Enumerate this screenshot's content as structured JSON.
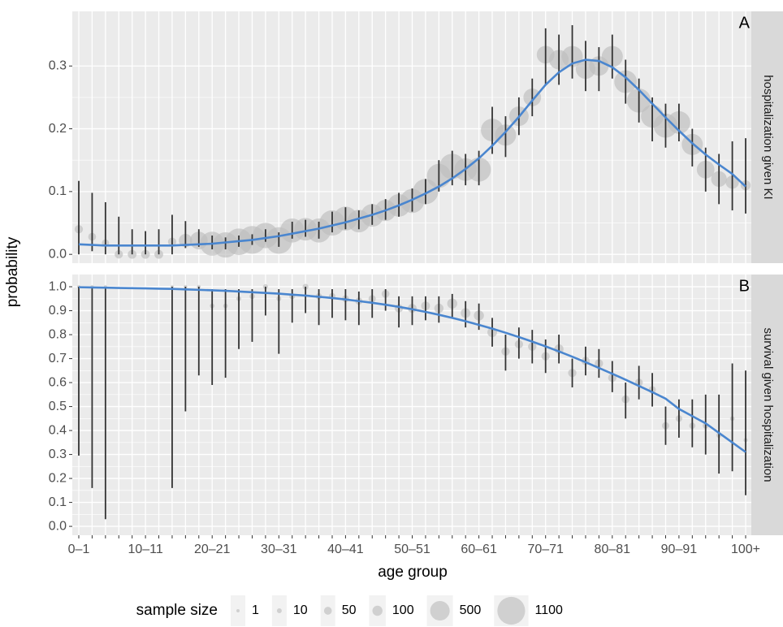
{
  "categories": [
    "0–1",
    null,
    null,
    null,
    null,
    "10–11",
    null,
    null,
    null,
    null,
    "20–21",
    null,
    null,
    null,
    null,
    "30–31",
    null,
    null,
    null,
    null,
    "40–41",
    null,
    null,
    null,
    null,
    "50–51",
    null,
    null,
    null,
    null,
    "60–61",
    null,
    null,
    null,
    null,
    "70–71",
    null,
    null,
    null,
    null,
    "80–81",
    null,
    null,
    null,
    null,
    "90–91",
    null,
    null,
    null,
    null,
    "100+"
  ],
  "x_label": "age group",
  "y_label": "probability",
  "legend": {
    "title": "sample size",
    "sizes": [
      1,
      10,
      50,
      100,
      500,
      1100
    ]
  },
  "chart_data": [
    {
      "type": "scatter",
      "label": "A",
      "strip": "hospitalization given KI",
      "point_color": "#bdbdbd",
      "bar_color": "#333333",
      "fit_color": "#4a86cf",
      "grid": true,
      "ylim": [
        -0.014,
        0.387
      ],
      "yticks": [
        {
          "value": 0,
          "label": "0.0"
        },
        {
          "value": 0.1,
          "label": "0.1"
        },
        {
          "value": 0.2,
          "label": "0.2"
        },
        {
          "value": 0.3,
          "label": "0.3"
        }
      ],
      "values": [
        0.04,
        0.028,
        0.018,
        0,
        0,
        0,
        0,
        0.02,
        0.022,
        0.022,
        0.017,
        0.015,
        0.02,
        0.023,
        0.03,
        0.022,
        0.038,
        0.04,
        0.038,
        0.05,
        0.057,
        0.053,
        0.062,
        0.07,
        0.078,
        0.085,
        0.1,
        0.125,
        0.14,
        0.135,
        0.135,
        0.198,
        0.19,
        0.22,
        0.25,
        0.318,
        0.31,
        0.315,
        0.295,
        0.3,
        0.315,
        0.275,
        0.245,
        0.22,
        0.205,
        0.21,
        0.175,
        0.135,
        0.12,
        0.115,
        0.11
      ],
      "lower": [
        0,
        0.005,
        0,
        0,
        0,
        0,
        0,
        0,
        0.01,
        0.012,
        0.008,
        0.008,
        0.012,
        0.015,
        0.02,
        0.012,
        0.025,
        0.028,
        0.025,
        0.035,
        0.04,
        0.04,
        0.047,
        0.055,
        0.06,
        0.068,
        0.08,
        0.1,
        0.11,
        0.11,
        0.11,
        0.16,
        0.155,
        0.19,
        0.22,
        0.27,
        0.27,
        0.28,
        0.26,
        0.26,
        0.28,
        0.24,
        0.21,
        0.18,
        0.17,
        0.18,
        0.14,
        0.1,
        0.08,
        0.07,
        0.065
      ],
      "upper": [
        0.117,
        0.098,
        0.083,
        0.06,
        0.04,
        0.037,
        0.04,
        0.063,
        0.053,
        0.04,
        0.03,
        0.027,
        0.03,
        0.032,
        0.04,
        0.035,
        0.052,
        0.055,
        0.052,
        0.068,
        0.075,
        0.07,
        0.08,
        0.088,
        0.098,
        0.105,
        0.12,
        0.15,
        0.165,
        0.16,
        0.165,
        0.235,
        0.22,
        0.25,
        0.28,
        0.36,
        0.35,
        0.365,
        0.34,
        0.33,
        0.35,
        0.31,
        0.28,
        0.25,
        0.24,
        0.24,
        0.2,
        0.17,
        0.16,
        0.18,
        0.185
      ],
      "sizes": [
        60,
        50,
        40,
        60,
        70,
        70,
        70,
        60,
        200,
        400,
        800,
        900,
        1000,
        1100,
        900,
        1000,
        800,
        700,
        800,
        900,
        800,
        700,
        700,
        600,
        700,
        800,
        900,
        800,
        900,
        700,
        800,
        700,
        600,
        500,
        400,
        400,
        500,
        600,
        500,
        500,
        600,
        700,
        800,
        700,
        800,
        700,
        600,
        400,
        300,
        200,
        100
      ],
      "fit": [
        0.016,
        0.015,
        0.014,
        0.014,
        0.014,
        0.014,
        0.014,
        0.014,
        0.015,
        0.016,
        0.017,
        0.019,
        0.021,
        0.023,
        0.026,
        0.029,
        0.033,
        0.037,
        0.041,
        0.046,
        0.051,
        0.057,
        0.063,
        0.07,
        0.078,
        0.087,
        0.097,
        0.108,
        0.121,
        0.136,
        0.153,
        0.173,
        0.195,
        0.219,
        0.245,
        0.27,
        0.29,
        0.304,
        0.31,
        0.308,
        0.298,
        0.282,
        0.262,
        0.24,
        0.218,
        0.197,
        0.177,
        0.159,
        0.143,
        0.128,
        0.108
      ]
    },
    {
      "type": "scatter",
      "label": "B",
      "strip": "survival given hospitalization",
      "point_color": "#bdbdbd",
      "bar_color": "#333333",
      "fit_color": "#4a86cf",
      "grid": true,
      "ylim": [
        -0.037,
        1.051
      ],
      "yticks": [
        {
          "value": 0,
          "label": "0.0"
        },
        {
          "value": 0.1,
          "label": "0.1"
        },
        {
          "value": 0.2,
          "label": "0.2"
        },
        {
          "value": 0.3,
          "label": "0.3"
        },
        {
          "value": 0.4,
          "label": "0.4"
        },
        {
          "value": 0.5,
          "label": "0.5"
        },
        {
          "value": 0.6,
          "label": "0.6"
        },
        {
          "value": 0.7,
          "label": "0.7"
        },
        {
          "value": 0.8,
          "label": "0.8"
        },
        {
          "value": 0.9,
          "label": "0.9"
        },
        {
          "value": 1,
          "label": "1.0"
        }
      ],
      "values": [
        1,
        1,
        1,
        null,
        null,
        null,
        null,
        1,
        1,
        1,
        0.92,
        0.92,
        0.95,
        0.96,
        1,
        0.95,
        0.96,
        1,
        0.96,
        0.96,
        0.95,
        0.94,
        0.95,
        0.97,
        0.91,
        0.91,
        0.92,
        0.91,
        0.93,
        0.89,
        0.88,
        0.81,
        0.73,
        0.76,
        0.75,
        0.71,
        0.74,
        0.64,
        0.69,
        0.68,
        0.62,
        0.53,
        0.6,
        0.57,
        0.42,
        0.45,
        0.42,
        0.42,
        0.38,
        0.45,
        0.36
      ],
      "lower": [
        0.295,
        0.16,
        0.03,
        null,
        null,
        null,
        null,
        0.16,
        0.48,
        0.63,
        0.59,
        0.62,
        0.74,
        0.77,
        0.88,
        0.72,
        0.85,
        0.89,
        0.84,
        0.87,
        0.86,
        0.84,
        0.87,
        0.9,
        0.83,
        0.84,
        0.86,
        0.85,
        0.87,
        0.83,
        0.82,
        0.75,
        0.65,
        0.7,
        0.68,
        0.64,
        0.68,
        0.58,
        0.63,
        0.62,
        0.56,
        0.45,
        0.53,
        0.5,
        0.34,
        0.37,
        0.33,
        0.3,
        0.22,
        0.23,
        0.13
      ],
      "upper": [
        1,
        1,
        1,
        null,
        null,
        null,
        null,
        1,
        1,
        1,
        0.99,
        0.99,
        0.99,
        0.99,
        1,
        0.99,
        0.99,
        1,
        0.99,
        0.99,
        0.99,
        0.98,
        0.99,
        0.99,
        0.96,
        0.96,
        0.96,
        0.96,
        0.97,
        0.94,
        0.93,
        0.87,
        0.8,
        0.83,
        0.82,
        0.78,
        0.8,
        0.7,
        0.75,
        0.74,
        0.69,
        0.6,
        0.67,
        0.64,
        0.5,
        0.53,
        0.53,
        0.55,
        0.55,
        0.68,
        0.65
      ],
      "sizes": [
        1,
        1,
        1,
        null,
        null,
        null,
        null,
        1,
        2,
        3,
        8,
        8,
        10,
        15,
        12,
        10,
        20,
        20,
        25,
        30,
        35,
        40,
        40,
        50,
        60,
        70,
        70,
        80,
        100,
        90,
        100,
        90,
        60,
        60,
        60,
        60,
        80,
        60,
        60,
        60,
        60,
        50,
        50,
        40,
        40,
        30,
        25,
        20,
        12,
        8,
        5
      ],
      "fit": [
        0.998,
        0.997,
        0.996,
        0.995,
        0.994,
        0.993,
        0.992,
        0.991,
        0.989,
        0.987,
        0.985,
        0.983,
        0.98,
        0.977,
        0.974,
        0.971,
        0.967,
        0.963,
        0.958,
        0.953,
        0.947,
        0.94,
        0.933,
        0.925,
        0.916,
        0.906,
        0.895,
        0.883,
        0.87,
        0.856,
        0.841,
        0.825,
        0.808,
        0.79,
        0.771,
        0.751,
        0.73,
        0.708,
        0.685,
        0.661,
        0.637,
        0.612,
        0.586,
        0.56,
        0.533,
        0.49,
        0.46,
        0.43,
        0.39,
        0.35,
        0.31
      ]
    }
  ]
}
